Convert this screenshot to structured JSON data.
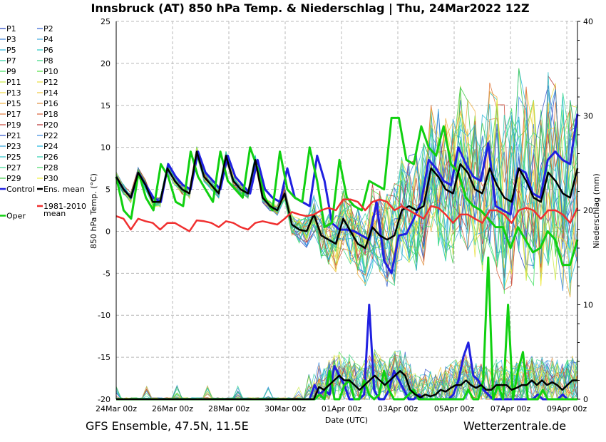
{
  "chart_data": {
    "type": "line",
    "title": "Innsbruck  (AT)  850 hPa Temp. & Niederschlag | Thu, 24Mar2022 12Z",
    "xlabel": "Date (UTC)",
    "ylabel_left": "850 hPa Temp. (°C)",
    "ylabel_right": "Niederschlag (mm)",
    "x_ticks": [
      "24Mar 00z",
      "26Mar 00z",
      "28Mar 00z",
      "30Mar 00z",
      "01Apr 00z",
      "03Apr 00z",
      "05Apr 00z",
      "07Apr 00z",
      "09Apr 00z"
    ],
    "y_ticks_left": [
      "25",
      "20",
      "15",
      "10",
      "5",
      "0",
      "-5",
      "-10",
      "-15",
      "-20"
    ],
    "y_ticks_right": [
      "40",
      "30",
      "20",
      "10",
      "0"
    ],
    "ylim_left": [
      -20,
      25
    ],
    "ylim_right": [
      0,
      40
    ],
    "grid": true,
    "legend_position": "left",
    "legend": [
      {
        "name": "P1",
        "color": "#1f3fbf"
      },
      {
        "name": "P2",
        "color": "#2f5fd0"
      },
      {
        "name": "P3",
        "color": "#3a7fd8"
      },
      {
        "name": "P4",
        "color": "#40a8e0"
      },
      {
        "name": "P5",
        "color": "#30b8d8"
      },
      {
        "name": "P6",
        "color": "#28c8c0"
      },
      {
        "name": "P7",
        "color": "#30d0a0"
      },
      {
        "name": "P8",
        "color": "#38d880"
      },
      {
        "name": "P9",
        "color": "#40e060"
      },
      {
        "name": "P10",
        "color": "#50e040"
      },
      {
        "name": "P11",
        "color": "#c8e840"
      },
      {
        "name": "P12",
        "color": "#e8e040"
      },
      {
        "name": "P13",
        "color": "#f0d840"
      },
      {
        "name": "P14",
        "color": "#f0c840"
      },
      {
        "name": "P15",
        "color": "#f0b040"
      },
      {
        "name": "P16",
        "color": "#e09040"
      },
      {
        "name": "P17",
        "color": "#e07838"
      },
      {
        "name": "P18",
        "color": "#d86038"
      },
      {
        "name": "P19",
        "color": "#c84838"
      },
      {
        "name": "P20",
        "color": "#b83030"
      },
      {
        "name": "P21",
        "color": "#3050c8"
      },
      {
        "name": "P22",
        "color": "#3888e0"
      },
      {
        "name": "P23",
        "color": "#30a0d8"
      },
      {
        "name": "P24",
        "color": "#20b8e0"
      },
      {
        "name": "P25",
        "color": "#28c0c8"
      },
      {
        "name": "P26",
        "color": "#30d0b0"
      },
      {
        "name": "P27",
        "color": "#38d890"
      },
      {
        "name": "P28",
        "color": "#48d868"
      },
      {
        "name": "P29",
        "color": "#40c848"
      },
      {
        "name": "P30",
        "color": "#f0f040"
      },
      {
        "name": "Control",
        "color": "#2020e0"
      },
      {
        "name": "Ens. mean",
        "color": "#000000"
      },
      {
        "name": "Oper",
        "color": "#10d010"
      },
      {
        "name": "1981-2010\nmean",
        "color": "#f03030"
      }
    ],
    "series": [
      {
        "name": "Control",
        "color": "#2020e0",
        "axis": "left",
        "values": [
          6.5,
          5.0,
          4.0,
          7.0,
          5.5,
          4.0,
          3.5,
          8.0,
          6.5,
          5.5,
          5.0,
          9.5,
          7.0,
          6.0,
          5.0,
          9.0,
          6.5,
          5.5,
          4.5,
          8.5,
          5.0,
          4.0,
          3.5,
          7.5,
          4.0,
          3.5,
          3.0,
          9.0,
          6.0,
          1.0,
          0.2,
          0.2,
          0.0,
          -0.5,
          -1.0,
          3.5,
          -3.5,
          -5.0,
          -0.5,
          -0.3,
          1.5,
          3.5,
          8.5,
          7.5,
          6.0,
          5.5,
          10.0,
          8.0,
          6.5,
          6.0,
          10.5,
          3.0,
          2.5,
          2.0,
          7.5,
          7.0,
          4.5,
          4.0,
          8.5,
          9.5,
          8.5,
          8.0,
          14.0
        ]
      },
      {
        "name": "Oper",
        "color": "#10d010",
        "axis": "left",
        "values": [
          6.5,
          2.5,
          1.5,
          7.0,
          4.0,
          2.5,
          8.0,
          6.5,
          3.5,
          3.0,
          9.5,
          6.5,
          5.0,
          3.5,
          9.5,
          6.0,
          5.0,
          4.0,
          10.0,
          7.5,
          4.0,
          2.5,
          9.5,
          5.0,
          4.0,
          3.5,
          10.0,
          6.0,
          0.5,
          1.0,
          8.5,
          4.0,
          3.0,
          2.5,
          6.0,
          5.5,
          5.0,
          13.5,
          13.5,
          8.5,
          8.0,
          12.5,
          10.0,
          9.0,
          12.5,
          8.0,
          7.0,
          4.0,
          3.0,
          2.5,
          1.5,
          0.5,
          0.5,
          -2.0,
          0.5,
          -1.0,
          -2.5,
          -2.0,
          0.0,
          -1.0,
          -4.0,
          -4.0,
          -1.0
        ]
      },
      {
        "name": "Ens. mean",
        "color": "#000000",
        "axis": "left",
        "values": [
          6.5,
          5.0,
          4.0,
          7.0,
          5.5,
          3.5,
          3.5,
          7.5,
          6.0,
          5.0,
          4.5,
          9.5,
          6.5,
          5.5,
          4.5,
          9.0,
          6.0,
          5.0,
          4.5,
          8.5,
          4.0,
          3.0,
          2.5,
          4.5,
          0.8,
          0.2,
          0.0,
          2.0,
          -0.5,
          -1.0,
          -1.5,
          1.5,
          0.0,
          -1.5,
          -2.0,
          0.5,
          -0.5,
          -1.0,
          -0.5,
          2.5,
          3.0,
          2.5,
          3.0,
          7.5,
          6.5,
          5.0,
          4.5,
          8.0,
          7.0,
          5.0,
          4.5,
          7.5,
          5.5,
          4.0,
          3.5,
          7.5,
          6.0,
          4.0,
          3.5,
          7.0,
          6.0,
          4.5,
          4.0,
          7.5
        ]
      },
      {
        "name": "1981-2010 mean",
        "color": "#f03030",
        "axis": "left",
        "values": [
          1.8,
          1.5,
          0.2,
          1.5,
          1.2,
          1.0,
          0.2,
          1.0,
          1.0,
          0.5,
          0.0,
          1.3,
          1.2,
          1.0,
          0.5,
          1.2,
          1.0,
          0.5,
          0.2,
          1.0,
          1.2,
          1.0,
          0.8,
          1.5,
          2.3,
          2.0,
          1.8,
          2.0,
          2.5,
          2.8,
          2.5,
          3.8,
          3.8,
          3.5,
          2.5,
          3.5,
          3.8,
          3.5,
          2.5,
          3.0,
          2.5,
          2.0,
          1.5,
          3.0,
          2.8,
          2.0,
          1.0,
          2.0,
          2.0,
          1.5,
          1.0,
          2.5,
          2.5,
          2.0,
          1.0,
          2.5,
          2.8,
          2.5,
          1.5,
          2.5,
          2.5,
          2.0,
          1.0,
          2.8
        ]
      },
      {
        "name": "Control precip",
        "color": "#2020e0",
        "axis": "right",
        "values": [
          0,
          0,
          0,
          0,
          0,
          0,
          0,
          0,
          0,
          0,
          0,
          0,
          0,
          0,
          0,
          0,
          0,
          0,
          0,
          0,
          0,
          0,
          0,
          0,
          0,
          0,
          0,
          0,
          0,
          0,
          0,
          0,
          0,
          0,
          0,
          0,
          0,
          0,
          0,
          0,
          1.5,
          0.5,
          1,
          0.5,
          3.5,
          2.5,
          1.5,
          0,
          0,
          0,
          0.5,
          10,
          1,
          0,
          0,
          1,
          3,
          2,
          1,
          0,
          0,
          0.5,
          0,
          0,
          0,
          0,
          0,
          0,
          0.5,
          2,
          4.5,
          6,
          2.5,
          2,
          1,
          0.5,
          0,
          0,
          0,
          0,
          0,
          0,
          0,
          0,
          0,
          0.5,
          0,
          0,
          0,
          0,
          0.5,
          0,
          0,
          0
        ]
      },
      {
        "name": "Oper precip",
        "color": "#10d010",
        "axis": "right",
        "values": [
          0,
          0,
          0,
          0,
          0,
          0,
          0,
          0,
          0,
          0,
          0,
          0,
          0,
          0,
          0,
          0,
          0,
          0,
          0,
          0,
          0,
          0,
          0,
          0,
          0,
          0,
          0,
          0,
          0,
          0,
          0,
          0,
          0,
          0,
          0,
          0,
          0,
          0,
          0,
          0,
          0,
          0.5,
          0,
          3,
          0,
          0,
          1.5,
          2,
          0,
          0,
          2,
          0.5,
          0,
          0.5,
          3,
          1,
          0,
          0,
          0,
          0.5,
          1,
          0,
          0,
          0,
          0,
          0,
          0,
          0,
          0,
          0,
          0,
          1,
          0,
          0,
          2,
          15,
          0,
          1.5,
          0,
          10,
          0,
          3,
          5,
          0,
          0,
          0,
          1,
          0,
          0,
          0,
          0,
          0,
          0,
          0
        ]
      },
      {
        "name": "Ens. mean precip",
        "color": "#000000",
        "axis": "right",
        "values": [
          0,
          0,
          0,
          0,
          0,
          0,
          0,
          0,
          0,
          0,
          0,
          0,
          0,
          0,
          0,
          0,
          0,
          0,
          0,
          0,
          0,
          0,
          0,
          0,
          0,
          0,
          0,
          0,
          0,
          0,
          0,
          0,
          0,
          0,
          0,
          0,
          0,
          0,
          0,
          0,
          1.3,
          1.0,
          1.5,
          2.0,
          2.5,
          2.0,
          2.0,
          1.5,
          1.0,
          1.5,
          2.0,
          2.5,
          2.0,
          1.5,
          2.0,
          2.5,
          3.0,
          2.5,
          1.0,
          0.5,
          0.2,
          0.5,
          0.3,
          0.5,
          1.0,
          0.8,
          1.2,
          1.5,
          1.5,
          2.0,
          1.5,
          1.2,
          1.5,
          1.0,
          1.0,
          1.5,
          1.5,
          1.5,
          1.0,
          1.2,
          1.5,
          1.5,
          2.0,
          1.5,
          2.0,
          1.5,
          1.8,
          1.5,
          1.0,
          1.5,
          2.0,
          2.0
        ]
      }
    ]
  },
  "footer": {
    "left": "GFS Ensemble, 47.5N, 11.5E",
    "right": "Wetterzentrale.de"
  }
}
